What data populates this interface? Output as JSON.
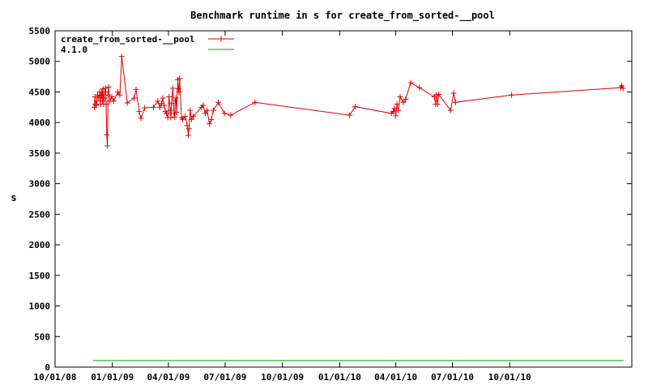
{
  "chart_data": {
    "type": "line",
    "title": "Benchmark runtime in s for create_from_sorted-__pool",
    "xlabel": "",
    "ylabel": "s",
    "x_axis_type": "date",
    "xlim": [
      "2008-10-01",
      "2011-04-15"
    ],
    "ylim": [
      0,
      5500
    ],
    "y_ticks": [
      0,
      500,
      1000,
      1500,
      2000,
      2500,
      3000,
      3500,
      4000,
      4500,
      5000,
      5500
    ],
    "x_ticks": [
      {
        "date": "2008-10-01",
        "label": "10/01/08"
      },
      {
        "date": "2009-01-01",
        "label": "01/01/09"
      },
      {
        "date": "2009-04-01",
        "label": "04/01/09"
      },
      {
        "date": "2009-07-01",
        "label": "07/01/09"
      },
      {
        "date": "2009-10-01",
        "label": "10/01/09"
      },
      {
        "date": "2010-01-01",
        "label": "01/01/10"
      },
      {
        "date": "2010-04-01",
        "label": "04/01/10"
      },
      {
        "date": "2010-07-01",
        "label": "07/01/10"
      },
      {
        "date": "2010-10-01",
        "label": "10/01/10"
      }
    ],
    "grid": false,
    "legend_position": "top-left",
    "series": [
      {
        "name": "create_from_sorted-__pool",
        "color": "#e00000",
        "marker": "plus",
        "points": [
          [
            "2008-12-03",
            4250
          ],
          [
            "2008-12-04",
            4420
          ],
          [
            "2008-12-05",
            4300
          ],
          [
            "2008-12-06",
            4280
          ],
          [
            "2008-12-07",
            4350
          ],
          [
            "2008-12-08",
            4450
          ],
          [
            "2008-12-10",
            4400
          ],
          [
            "2008-12-12",
            4500
          ],
          [
            "2008-12-13",
            4300
          ],
          [
            "2008-12-14",
            4450
          ],
          [
            "2008-12-15",
            4500
          ],
          [
            "2008-12-16",
            4350
          ],
          [
            "2008-12-17",
            4550
          ],
          [
            "2008-12-18",
            4300
          ],
          [
            "2008-12-19",
            4400
          ],
          [
            "2008-12-20",
            4500
          ],
          [
            "2008-12-21",
            4560
          ],
          [
            "2008-12-22",
            4300
          ],
          [
            "2008-12-23",
            3800
          ],
          [
            "2008-12-24",
            3620
          ],
          [
            "2008-12-25",
            4450
          ],
          [
            "2008-12-26",
            4580
          ],
          [
            "2008-12-28",
            4350
          ],
          [
            "2008-12-31",
            4420
          ],
          [
            "2009-01-03",
            4350
          ],
          [
            "2009-01-10",
            4500
          ],
          [
            "2009-01-13",
            4450
          ],
          [
            "2009-01-16",
            5080
          ],
          [
            "2009-01-25",
            4320
          ],
          [
            "2009-02-05",
            4400
          ],
          [
            "2009-02-08",
            4540
          ],
          [
            "2009-02-13",
            4180
          ],
          [
            "2009-02-16",
            4070
          ],
          [
            "2009-02-22",
            4240
          ],
          [
            "2009-03-08",
            4250
          ],
          [
            "2009-03-15",
            4350
          ],
          [
            "2009-03-18",
            4250
          ],
          [
            "2009-03-21",
            4310
          ],
          [
            "2009-03-23",
            4400
          ],
          [
            "2009-03-25",
            4280
          ],
          [
            "2009-03-27",
            4180
          ],
          [
            "2009-03-29",
            4150
          ],
          [
            "2009-03-31",
            4080
          ],
          [
            "2009-04-02",
            4420
          ],
          [
            "2009-04-04",
            4200
          ],
          [
            "2009-04-05",
            4080
          ],
          [
            "2009-04-06",
            4310
          ],
          [
            "2009-04-08",
            4560
          ],
          [
            "2009-04-10",
            4150
          ],
          [
            "2009-04-11",
            4090
          ],
          [
            "2009-04-12",
            4360
          ],
          [
            "2009-04-13",
            4400
          ],
          [
            "2009-04-14",
            4170
          ],
          [
            "2009-04-16",
            4700
          ],
          [
            "2009-04-17",
            4550
          ],
          [
            "2009-04-18",
            4500
          ],
          [
            "2009-04-19",
            4720
          ],
          [
            "2009-04-22",
            4080
          ],
          [
            "2009-04-24",
            4050
          ],
          [
            "2009-04-28",
            4100
          ],
          [
            "2009-05-01",
            3950
          ],
          [
            "2009-05-03",
            3790
          ],
          [
            "2009-05-04",
            3900
          ],
          [
            "2009-05-06",
            4200
          ],
          [
            "2009-05-08",
            4050
          ],
          [
            "2009-05-11",
            4100
          ],
          [
            "2009-05-24",
            4250
          ],
          [
            "2009-05-27",
            4280
          ],
          [
            "2009-05-30",
            4150
          ],
          [
            "2009-06-02",
            4200
          ],
          [
            "2009-06-06",
            3980
          ],
          [
            "2009-06-09",
            4050
          ],
          [
            "2009-06-12",
            4200
          ],
          [
            "2009-06-20",
            4330
          ],
          [
            "2009-06-30",
            4150
          ],
          [
            "2009-07-10",
            4120
          ],
          [
            "2009-08-18",
            4330
          ],
          [
            "2010-01-17",
            4120
          ],
          [
            "2010-01-26",
            4260
          ],
          [
            "2010-03-25",
            4150
          ],
          [
            "2010-03-28",
            4180
          ],
          [
            "2010-03-30",
            4230
          ],
          [
            "2010-04-01",
            4110
          ],
          [
            "2010-04-03",
            4300
          ],
          [
            "2010-04-05",
            4200
          ],
          [
            "2010-04-08",
            4420
          ],
          [
            "2010-04-13",
            4330
          ],
          [
            "2010-04-17",
            4380
          ],
          [
            "2010-04-25",
            4650
          ],
          [
            "2010-05-09",
            4570
          ],
          [
            "2010-06-02",
            4420
          ],
          [
            "2010-06-04",
            4300
          ],
          [
            "2010-06-05",
            4450
          ],
          [
            "2010-06-07",
            4300
          ],
          [
            "2010-06-09",
            4460
          ],
          [
            "2010-06-28",
            4200
          ],
          [
            "2010-07-03",
            4480
          ],
          [
            "2010-07-06",
            4330
          ],
          [
            "2010-10-04",
            4450
          ],
          [
            "2011-03-28",
            4570
          ],
          [
            "2011-03-30",
            4600
          ],
          [
            "2011-04-01",
            4560
          ]
        ]
      },
      {
        "name": "4.1.0",
        "color": "#00a000",
        "marker": "none",
        "points": [
          [
            "2008-12-01",
            108
          ],
          [
            "2011-04-02",
            108
          ]
        ]
      }
    ]
  }
}
